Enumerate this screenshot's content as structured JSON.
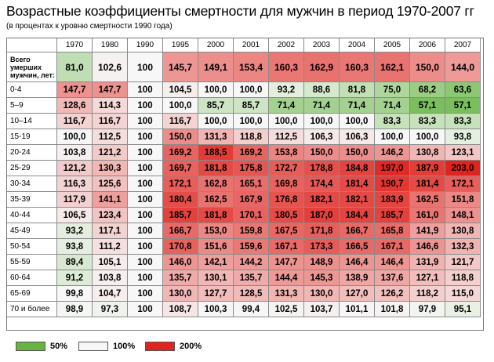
{
  "title": "Возрастные коэффициенты смертности для мужчин в период 1970-2007 гг",
  "subtitle": "(в процентах к уровню смертности 1990 года)",
  "legend": [
    {
      "label": "50%",
      "color": "#66b543"
    },
    {
      "label": "100%",
      "color": "#f7f7f7"
    },
    {
      "label": "200%",
      "color": "#e1231e"
    }
  ],
  "chart_data": {
    "type": "heatmap",
    "title": "Возрастные коэффициенты смертности для мужчин в период 1970-2007 гг",
    "subtitle": "(в процентах к уровню смертности 1990 года)",
    "columns": [
      "1970",
      "1980",
      "1990",
      "1995",
      "2000",
      "2001",
      "2002",
      "2003",
      "2004",
      "2005",
      "2006",
      "2007"
    ],
    "rows": [
      {
        "label": "Всего\nумерших\nмужчин, лет:",
        "values": [
          "81,0",
          "102,6",
          "100",
          "145,7",
          "149,1",
          "153,4",
          "160,3",
          "162,9",
          "160,3",
          "162,1",
          "150,0",
          "144,0"
        ]
      },
      {
        "label": "0-4",
        "values": [
          "147,7",
          "147,7",
          "100",
          "104,5",
          "100,0",
          "100,0",
          "93,2",
          "88,6",
          "81,8",
          "75,0",
          "68,2",
          "63,6"
        ]
      },
      {
        "label": "5–9",
        "values": [
          "128,6",
          "114,3",
          "100",
          "100,0",
          "85,7",
          "85,7",
          "71,4",
          "71,4",
          "71,4",
          "71,4",
          "57,1",
          "57,1"
        ]
      },
      {
        "label": "10–14",
        "values": [
          "116,7",
          "116,7",
          "100",
          "116,7",
          "100,0",
          "100,0",
          "100,0",
          "100,0",
          "100,0",
          "83,3",
          "83,3",
          "83,3"
        ]
      },
      {
        "label": "15-19",
        "values": [
          "100,0",
          "112,5",
          "100",
          "150,0",
          "131,3",
          "118,8",
          "112,5",
          "106,3",
          "106,3",
          "100,0",
          "100,0",
          "93,8"
        ]
      },
      {
        "label": "20-24",
        "values": [
          "103,8",
          "121,2",
          "100",
          "169,2",
          "188,5",
          "169,2",
          "153,8",
          "150,0",
          "150,0",
          "146,2",
          "130,8",
          "123,1"
        ]
      },
      {
        "label": "25-29",
        "values": [
          "121,2",
          "130,3",
          "100",
          "169,7",
          "181,8",
          "175,8",
          "172,7",
          "178,8",
          "184,8",
          "197,0",
          "187,9",
          "203,0"
        ]
      },
      {
        "label": "30-34",
        "values": [
          "116,3",
          "125,6",
          "100",
          "172,1",
          "162,8",
          "165,1",
          "169,8",
          "174,4",
          "181,4",
          "190,7",
          "181,4",
          "172,1"
        ]
      },
      {
        "label": "35-39",
        "values": [
          "117,9",
          "141,1",
          "100",
          "180,4",
          "162,5",
          "167,9",
          "176,8",
          "182,1",
          "182,1",
          "183,9",
          "162,5",
          "151,8"
        ]
      },
      {
        "label": "40-44",
        "values": [
          "106,5",
          "123,4",
          "100",
          "185,7",
          "181,8",
          "170,1",
          "180,5",
          "187,0",
          "184,4",
          "185,7",
          "161,0",
          "148,1"
        ]
      },
      {
        "label": "45-49",
        "values": [
          "93,2",
          "117,1",
          "100",
          "166,7",
          "153,0",
          "159,8",
          "167,5",
          "171,8",
          "166,7",
          "165,8",
          "141,9",
          "130,8"
        ]
      },
      {
        "label": "50-54",
        "values": [
          "93,8",
          "111,2",
          "100",
          "170,8",
          "151,6",
          "159,6",
          "167,1",
          "173,3",
          "166,5",
          "167,1",
          "146,6",
          "132,3"
        ]
      },
      {
        "label": "55-59",
        "values": [
          "89,4",
          "105,1",
          "100",
          "146,0",
          "142,1",
          "144,2",
          "147,7",
          "148,9",
          "146,4",
          "146,4",
          "131,9",
          "121,7"
        ]
      },
      {
        "label": "60-64",
        "values": [
          "91,2",
          "103,8",
          "100",
          "135,7",
          "130,1",
          "135,7",
          "144,4",
          "145,3",
          "138,9",
          "137,6",
          "127,1",
          "118,8"
        ]
      },
      {
        "label": "65-69",
        "values": [
          "99,8",
          "104,7",
          "100",
          "130,0",
          "127,7",
          "128,5",
          "131,3",
          "130,0",
          "127,0",
          "126,2",
          "118,2",
          "115,0"
        ]
      },
      {
        "label": "70 и более",
        "values": [
          "98,9",
          "97,3",
          "100",
          "108,7",
          "100,3",
          "99,4",
          "102,5",
          "103,7",
          "101,1",
          "101,8",
          "97,9",
          "95,1"
        ]
      }
    ],
    "color_scale": {
      "low": 50,
      "mid": 100,
      "high": 200
    }
  }
}
